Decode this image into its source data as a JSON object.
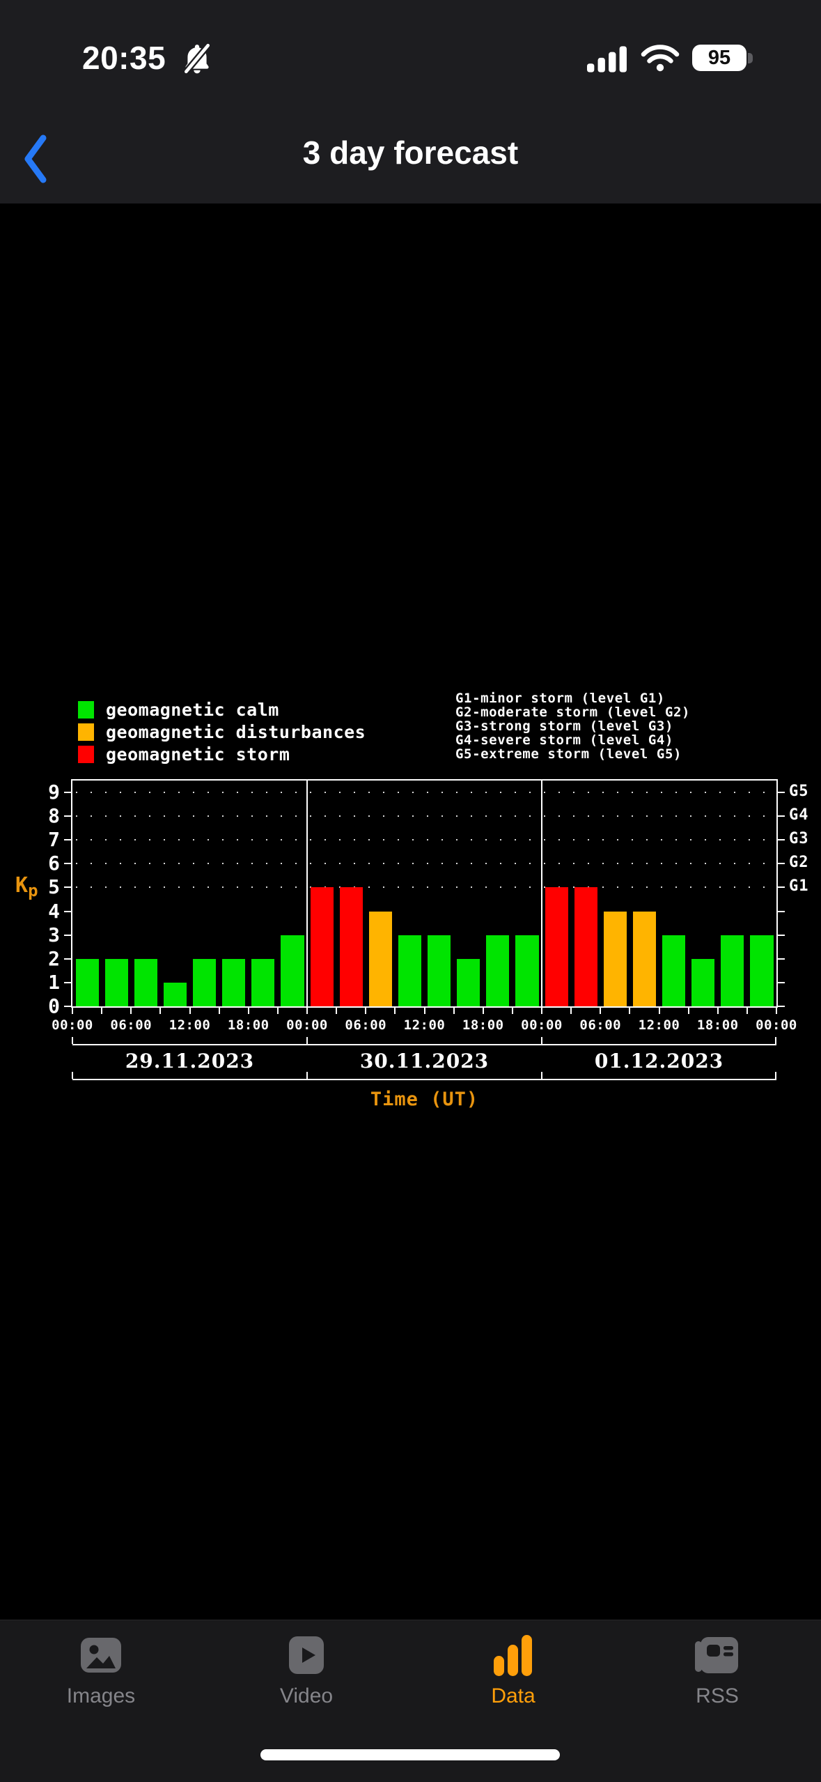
{
  "status_bar": {
    "time": "20:35",
    "battery_percent": "95",
    "icons": [
      "bell-slash",
      "cellular-signal",
      "wifi",
      "battery"
    ]
  },
  "nav_bar": {
    "title": "3 day forecast",
    "back_color": "#2679f6"
  },
  "chart": {
    "legend": [
      {
        "label": "geomagnetic calm",
        "color": "#00e400"
      },
      {
        "label": "geomagnetic disturbances",
        "color": "#ffb400"
      },
      {
        "label": "geomagnetic storm",
        "color": "#ff0000"
      }
    ],
    "storm_levels": [
      "G1-minor storm (level G1)",
      "G2-moderate storm (level G2)",
      "G3-strong storm (level G3)",
      "G4-severe storm (level G4)",
      "G5-extreme storm (level G5)"
    ]
  },
  "chart_data": {
    "type": "bar",
    "ylabel": "Kp",
    "xlabel": "Time (UT)",
    "ylim": [
      0,
      9.5
    ],
    "y_ticks": [
      0,
      1,
      2,
      3,
      4,
      5,
      6,
      7,
      8,
      9
    ],
    "x_tick_labels": [
      "00:00",
      "06:00",
      "12:00",
      "18:00",
      "00:00",
      "06:00",
      "12:00",
      "18:00",
      "00:00",
      "06:00",
      "12:00",
      "18:00",
      "00:00"
    ],
    "interval_hours": 3,
    "series": [
      {
        "date": "29.11.2023",
        "values": [
          2,
          2,
          2,
          1,
          2,
          2,
          2,
          3
        ]
      },
      {
        "date": "30.11.2023",
        "values": [
          5,
          5,
          4,
          3,
          3,
          2,
          3,
          3
        ]
      },
      {
        "date": "01.12.2023",
        "values": [
          5,
          5,
          4,
          4,
          3,
          2,
          3,
          3
        ]
      }
    ],
    "right_axis_labels": [
      {
        "label": "G1",
        "kp": 5
      },
      {
        "label": "G2",
        "kp": 6
      },
      {
        "label": "G3",
        "kp": 7
      },
      {
        "label": "G4",
        "kp": 8
      },
      {
        "label": "G5",
        "kp": 9
      }
    ],
    "colors": {
      "calm": "#00e400",
      "disturbances": "#ffb400",
      "storm": "#ff0000",
      "axis_label": "#e8940f",
      "grid_dots": "#d8d8d8",
      "axis": "#ffffff"
    },
    "color_rule": {
      "storm_min_kp": 5,
      "disturbances_kp": 4
    },
    "grid": "dotted horizontal rows at Kp 5-9",
    "legend_position": "top-left"
  },
  "tab_bar": {
    "active_color": "#ff9f0a",
    "inactive_color": "#85858a",
    "items": [
      {
        "label": "Images",
        "icon": "images-icon",
        "active": false
      },
      {
        "label": "Video",
        "icon": "video-icon",
        "active": false
      },
      {
        "label": "Data",
        "icon": "data-icon",
        "active": true
      },
      {
        "label": "RSS",
        "icon": "rss-icon",
        "active": false
      }
    ]
  }
}
